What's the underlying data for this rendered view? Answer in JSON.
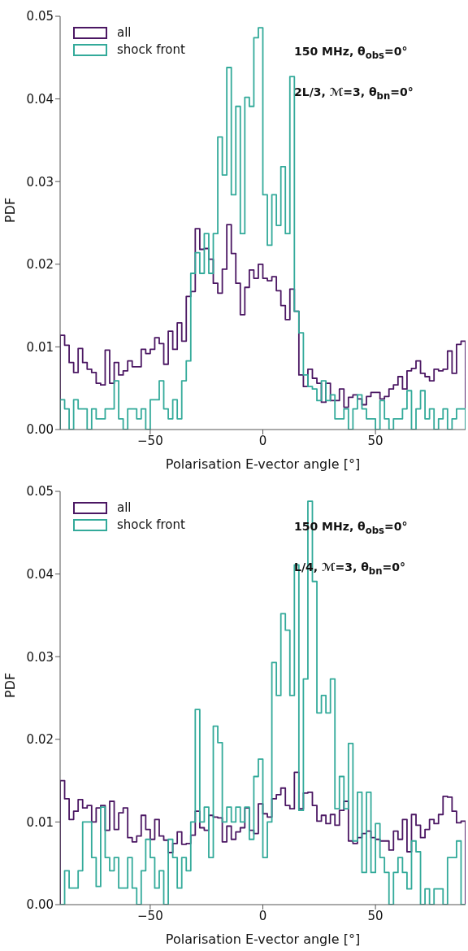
{
  "chart_data": [
    {
      "type": "histogram",
      "bins": [
        -90,
        -88,
        -86,
        -84,
        -82,
        -80,
        -78,
        -76,
        -74,
        -72,
        -70,
        -68,
        -66,
        -64,
        -62,
        -60,
        -58,
        -56,
        -54,
        -52,
        -50,
        -48,
        -46,
        -44,
        -42,
        -40,
        -38,
        -36,
        -34,
        -32,
        -30,
        -28,
        -26,
        -24,
        -22,
        -20,
        -18,
        -16,
        -14,
        -12,
        -10,
        -8,
        -6,
        -4,
        -2,
        0,
        2,
        4,
        6,
        8,
        10,
        12,
        14,
        16,
        18,
        20,
        22,
        24,
        26,
        28,
        30,
        32,
        34,
        36,
        38,
        40,
        42,
        44,
        46,
        48,
        50,
        52,
        54,
        56,
        58,
        60,
        62,
        64,
        66,
        68,
        70,
        72,
        74,
        76,
        78,
        80,
        82,
        84,
        86,
        88,
        90
      ],
      "xlim": [
        -90,
        90
      ],
      "xticks": [
        {
          "value": -50,
          "label": "−50"
        },
        {
          "value": 0,
          "label": "0"
        },
        {
          "value": 50,
          "label": "50"
        }
      ],
      "ylim": [
        0,
        0.05
      ],
      "yticks": [
        {
          "value": 0,
          "label": "0.00"
        },
        {
          "value": 0.01,
          "label": "0.01"
        },
        {
          "value": 0.02,
          "label": "0.02"
        },
        {
          "value": 0.03,
          "label": "0.03"
        },
        {
          "value": 0.04,
          "label": "0.04"
        },
        {
          "value": 0.05,
          "label": "0.05"
        }
      ],
      "xlabel": "Polarisation E-vector angle [°]",
      "ylabel": "PDF",
      "legend": "top left",
      "annotations": [
        "150 MHz, θ$_{obs}$=0°",
        "2L/3, ℳ=3, θ$_{bn}$=0°"
      ],
      "series": [
        {
          "name": "all",
          "color": "#4b1763",
          "values": [
            0.0114,
            0.0102,
            0.0081,
            0.0069,
            0.0098,
            0.0081,
            0.0073,
            0.0069,
            0.0056,
            0.0054,
            0.0096,
            0.0056,
            0.0081,
            0.0066,
            0.0071,
            0.0083,
            0.0076,
            0.0076,
            0.0097,
            0.0092,
            0.0097,
            0.0111,
            0.0104,
            0.0079,
            0.0119,
            0.0097,
            0.0129,
            0.0107,
            0.0161,
            0.0167,
            0.0243,
            0.0218,
            0.0219,
            0.0206,
            0.0177,
            0.0165,
            0.0194,
            0.0248,
            0.0213,
            0.0177,
            0.0139,
            0.0172,
            0.0193,
            0.0183,
            0.02,
            0.0183,
            0.018,
            0.0185,
            0.0168,
            0.015,
            0.0133,
            0.017,
            0.0143,
            0.0066,
            0.0052,
            0.0073,
            0.0062,
            0.0056,
            0.0033,
            0.0056,
            0.0035,
            0.0035,
            0.0049,
            0.0027,
            0.0039,
            0.0042,
            0.0037,
            0.003,
            0.004,
            0.0045,
            0.0045,
            0.0037,
            0.004,
            0.0049,
            0.0054,
            0.0064,
            0.0049,
            0.0071,
            0.0074,
            0.0083,
            0.0068,
            0.0064,
            0.0059,
            0.0073,
            0.0071,
            0.0073,
            0.0095,
            0.0068,
            0.0103,
            0.0107
          ]
        },
        {
          "name": "shock front",
          "color": "#33aa9a",
          "values": [
            0.0036,
            0.0025,
            0,
            0.0036,
            0.0025,
            0.0025,
            0,
            0.0025,
            0.0013,
            0.0013,
            0.0025,
            0.0025,
            0.0059,
            0.0013,
            0,
            0.0025,
            0.0025,
            0.0013,
            0.0025,
            0,
            0.0036,
            0.0036,
            0.0059,
            0.0025,
            0.0013,
            0.0036,
            0.0013,
            0.0059,
            0.0083,
            0.0189,
            0.0214,
            0.0189,
            0.0237,
            0.0189,
            0.0237,
            0.0354,
            0.0308,
            0.0438,
            0.0284,
            0.0391,
            0.0237,
            0.0402,
            0.0391,
            0.0474,
            0.0486,
            0.0284,
            0.0223,
            0.0284,
            0.0247,
            0.0318,
            0.0237,
            0.0427,
            0.0143,
            0.0117,
            0.0066,
            0.0052,
            0.0049,
            0.0035,
            0.0059,
            0.0035,
            0.0042,
            0.0013,
            0.0013,
            0.0025,
            0,
            0.0025,
            0.0042,
            0.0025,
            0.0013,
            0.0013,
            0,
            0.0035,
            0.0013,
            0,
            0.0013,
            0.0013,
            0.0025,
            0.0047,
            0,
            0.0025,
            0.0047,
            0.0013,
            0.0025,
            0,
            0.0013,
            0.0025,
            0,
            0.0013,
            0.0025,
            0.0025
          ]
        }
      ]
    },
    {
      "type": "histogram",
      "bins": [
        -90,
        -88,
        -86,
        -84,
        -82,
        -80,
        -78,
        -76,
        -74,
        -72,
        -70,
        -68,
        -66,
        -64,
        -62,
        -60,
        -58,
        -56,
        -54,
        -52,
        -50,
        -48,
        -46,
        -44,
        -42,
        -40,
        -38,
        -36,
        -34,
        -32,
        -30,
        -28,
        -26,
        -24,
        -22,
        -20,
        -18,
        -16,
        -14,
        -12,
        -10,
        -8,
        -6,
        -4,
        -2,
        0,
        2,
        4,
        6,
        8,
        10,
        12,
        14,
        16,
        18,
        20,
        22,
        24,
        26,
        28,
        30,
        32,
        34,
        36,
        38,
        40,
        42,
        44,
        46,
        48,
        50,
        52,
        54,
        56,
        58,
        60,
        62,
        64,
        66,
        68,
        70,
        72,
        74,
        76,
        78,
        80,
        82,
        84,
        86,
        88,
        90
      ],
      "xlim": [
        -90,
        90
      ],
      "xticks": [
        {
          "value": -50,
          "label": "−50"
        },
        {
          "value": 0,
          "label": "0"
        },
        {
          "value": 50,
          "label": "50"
        }
      ],
      "ylim": [
        0,
        0.05
      ],
      "yticks": [
        {
          "value": 0,
          "label": "0.00"
        },
        {
          "value": 0.01,
          "label": "0.01"
        },
        {
          "value": 0.02,
          "label": "0.02"
        },
        {
          "value": 0.03,
          "label": "0.03"
        },
        {
          "value": 0.04,
          "label": "0.04"
        },
        {
          "value": 0.05,
          "label": "0.05"
        }
      ],
      "xlabel": "Polarisation E-vector angle [°]",
      "ylabel": "PDF",
      "legend": "top left",
      "annotations": [
        "150 MHz, θ$_{obs}$=0°",
        "L/4, ℳ=3, θ$_{bn}$=0°"
      ],
      "series": [
        {
          "name": "all",
          "color": "#4b1763",
          "values": [
            0.015,
            0.0128,
            0.0103,
            0.0113,
            0.0127,
            0.0117,
            0.012,
            0.01,
            0.0117,
            0.012,
            0.009,
            0.0125,
            0.0091,
            0.0111,
            0.0117,
            0.0081,
            0.0076,
            0.0083,
            0.0108,
            0.0091,
            0.0079,
            0.0103,
            0.0083,
            0.0078,
            0.0063,
            0.0074,
            0.0088,
            0.0073,
            0.0074,
            0.0084,
            0.0113,
            0.0093,
            0.009,
            0.0108,
            0.0106,
            0.0105,
            0.0076,
            0.0095,
            0.0079,
            0.0088,
            0.0093,
            0.0117,
            0.009,
            0.0086,
            0.0122,
            0.011,
            0.0106,
            0.0128,
            0.0133,
            0.0141,
            0.012,
            0.0116,
            0.016,
            0.0116,
            0.0135,
            0.0136,
            0.012,
            0.0101,
            0.0108,
            0.0098,
            0.0109,
            0.0096,
            0.0114,
            0.0125,
            0.0077,
            0.0074,
            0.0081,
            0.0086,
            0.0089,
            0.0081,
            0.0079,
            0.0077,
            0.0077,
            0.0066,
            0.0089,
            0.0079,
            0.0103,
            0.0064,
            0.0109,
            0.0096,
            0.0081,
            0.0091,
            0.0103,
            0.0098,
            0.0109,
            0.0131,
            0.013,
            0.0113,
            0.0099,
            0.0101
          ]
        },
        {
          "name": "shock front",
          "color": "#33aa9a",
          "values": [
            0,
            0.0041,
            0.002,
            0.002,
            0.0041,
            0.01,
            0.01,
            0.0057,
            0.0022,
            0.0118,
            0.0057,
            0.0041,
            0.0057,
            0.002,
            0.002,
            0.0057,
            0.002,
            0,
            0.0041,
            0.0079,
            0.0057,
            0.002,
            0.0041,
            0,
            0.0079,
            0.0057,
            0.002,
            0.0057,
            0.0041,
            0.01,
            0.0236,
            0.01,
            0.0118,
            0.0057,
            0.0216,
            0.0196,
            0.01,
            0.0118,
            0.01,
            0.0118,
            0.01,
            0.0118,
            0.0079,
            0.0155,
            0.0176,
            0.0057,
            0.01,
            0.0293,
            0.0253,
            0.0352,
            0.0332,
            0.0253,
            0.0411,
            0.0114,
            0.0273,
            0.0488,
            0.0391,
            0.0232,
            0.0253,
            0.0232,
            0.0273,
            0.0116,
            0.0155,
            0.0116,
            0.0195,
            0.0077,
            0.0136,
            0.0039,
            0.0136,
            0.0039,
            0.0098,
            0.0057,
            0.0039,
            0,
            0.0039,
            0.0057,
            0.0039,
            0.0019,
            0.0077,
            0.0064,
            0,
            0.0019,
            0,
            0.0019,
            0.0019,
            0,
            0.0057,
            0.0057,
            0.0077,
            0
          ]
        }
      ]
    }
  ]
}
